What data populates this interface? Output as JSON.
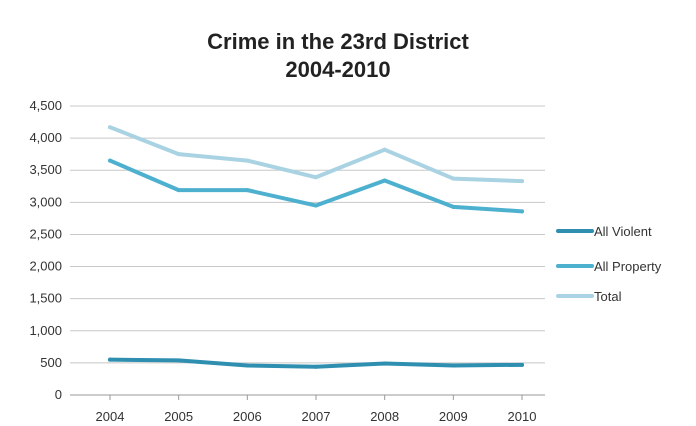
{
  "chart_data": {
    "type": "line",
    "title": "Crime in the 23rd District",
    "subtitle": "2004-2010",
    "xlabel": "",
    "ylabel": "",
    "categories": [
      "2004",
      "2005",
      "2006",
      "2007",
      "2008",
      "2009",
      "2010"
    ],
    "ylim": [
      0,
      4500
    ],
    "yticks": [
      0,
      500,
      1000,
      1500,
      2000,
      2500,
      3000,
      3500,
      4000,
      4500
    ],
    "ytick_labels": [
      "0",
      "500",
      "1,000",
      "1,500",
      "2,000",
      "2,500",
      "3,000",
      "3,500",
      "4,000",
      "4,500"
    ],
    "grid": "horizontal",
    "legend_position": "right",
    "series": [
      {
        "name": "All Violent",
        "color": "#2f8fb0",
        "values": [
          550,
          540,
          460,
          440,
          490,
          460,
          470
        ]
      },
      {
        "name": "All Property",
        "color": "#4eb0cf",
        "values": [
          3650,
          3190,
          3190,
          2950,
          3340,
          2930,
          2860
        ]
      },
      {
        "name": "Total",
        "color": "#a9d3e3",
        "values": [
          4170,
          3750,
          3650,
          3390,
          3820,
          3370,
          3330
        ]
      }
    ]
  }
}
